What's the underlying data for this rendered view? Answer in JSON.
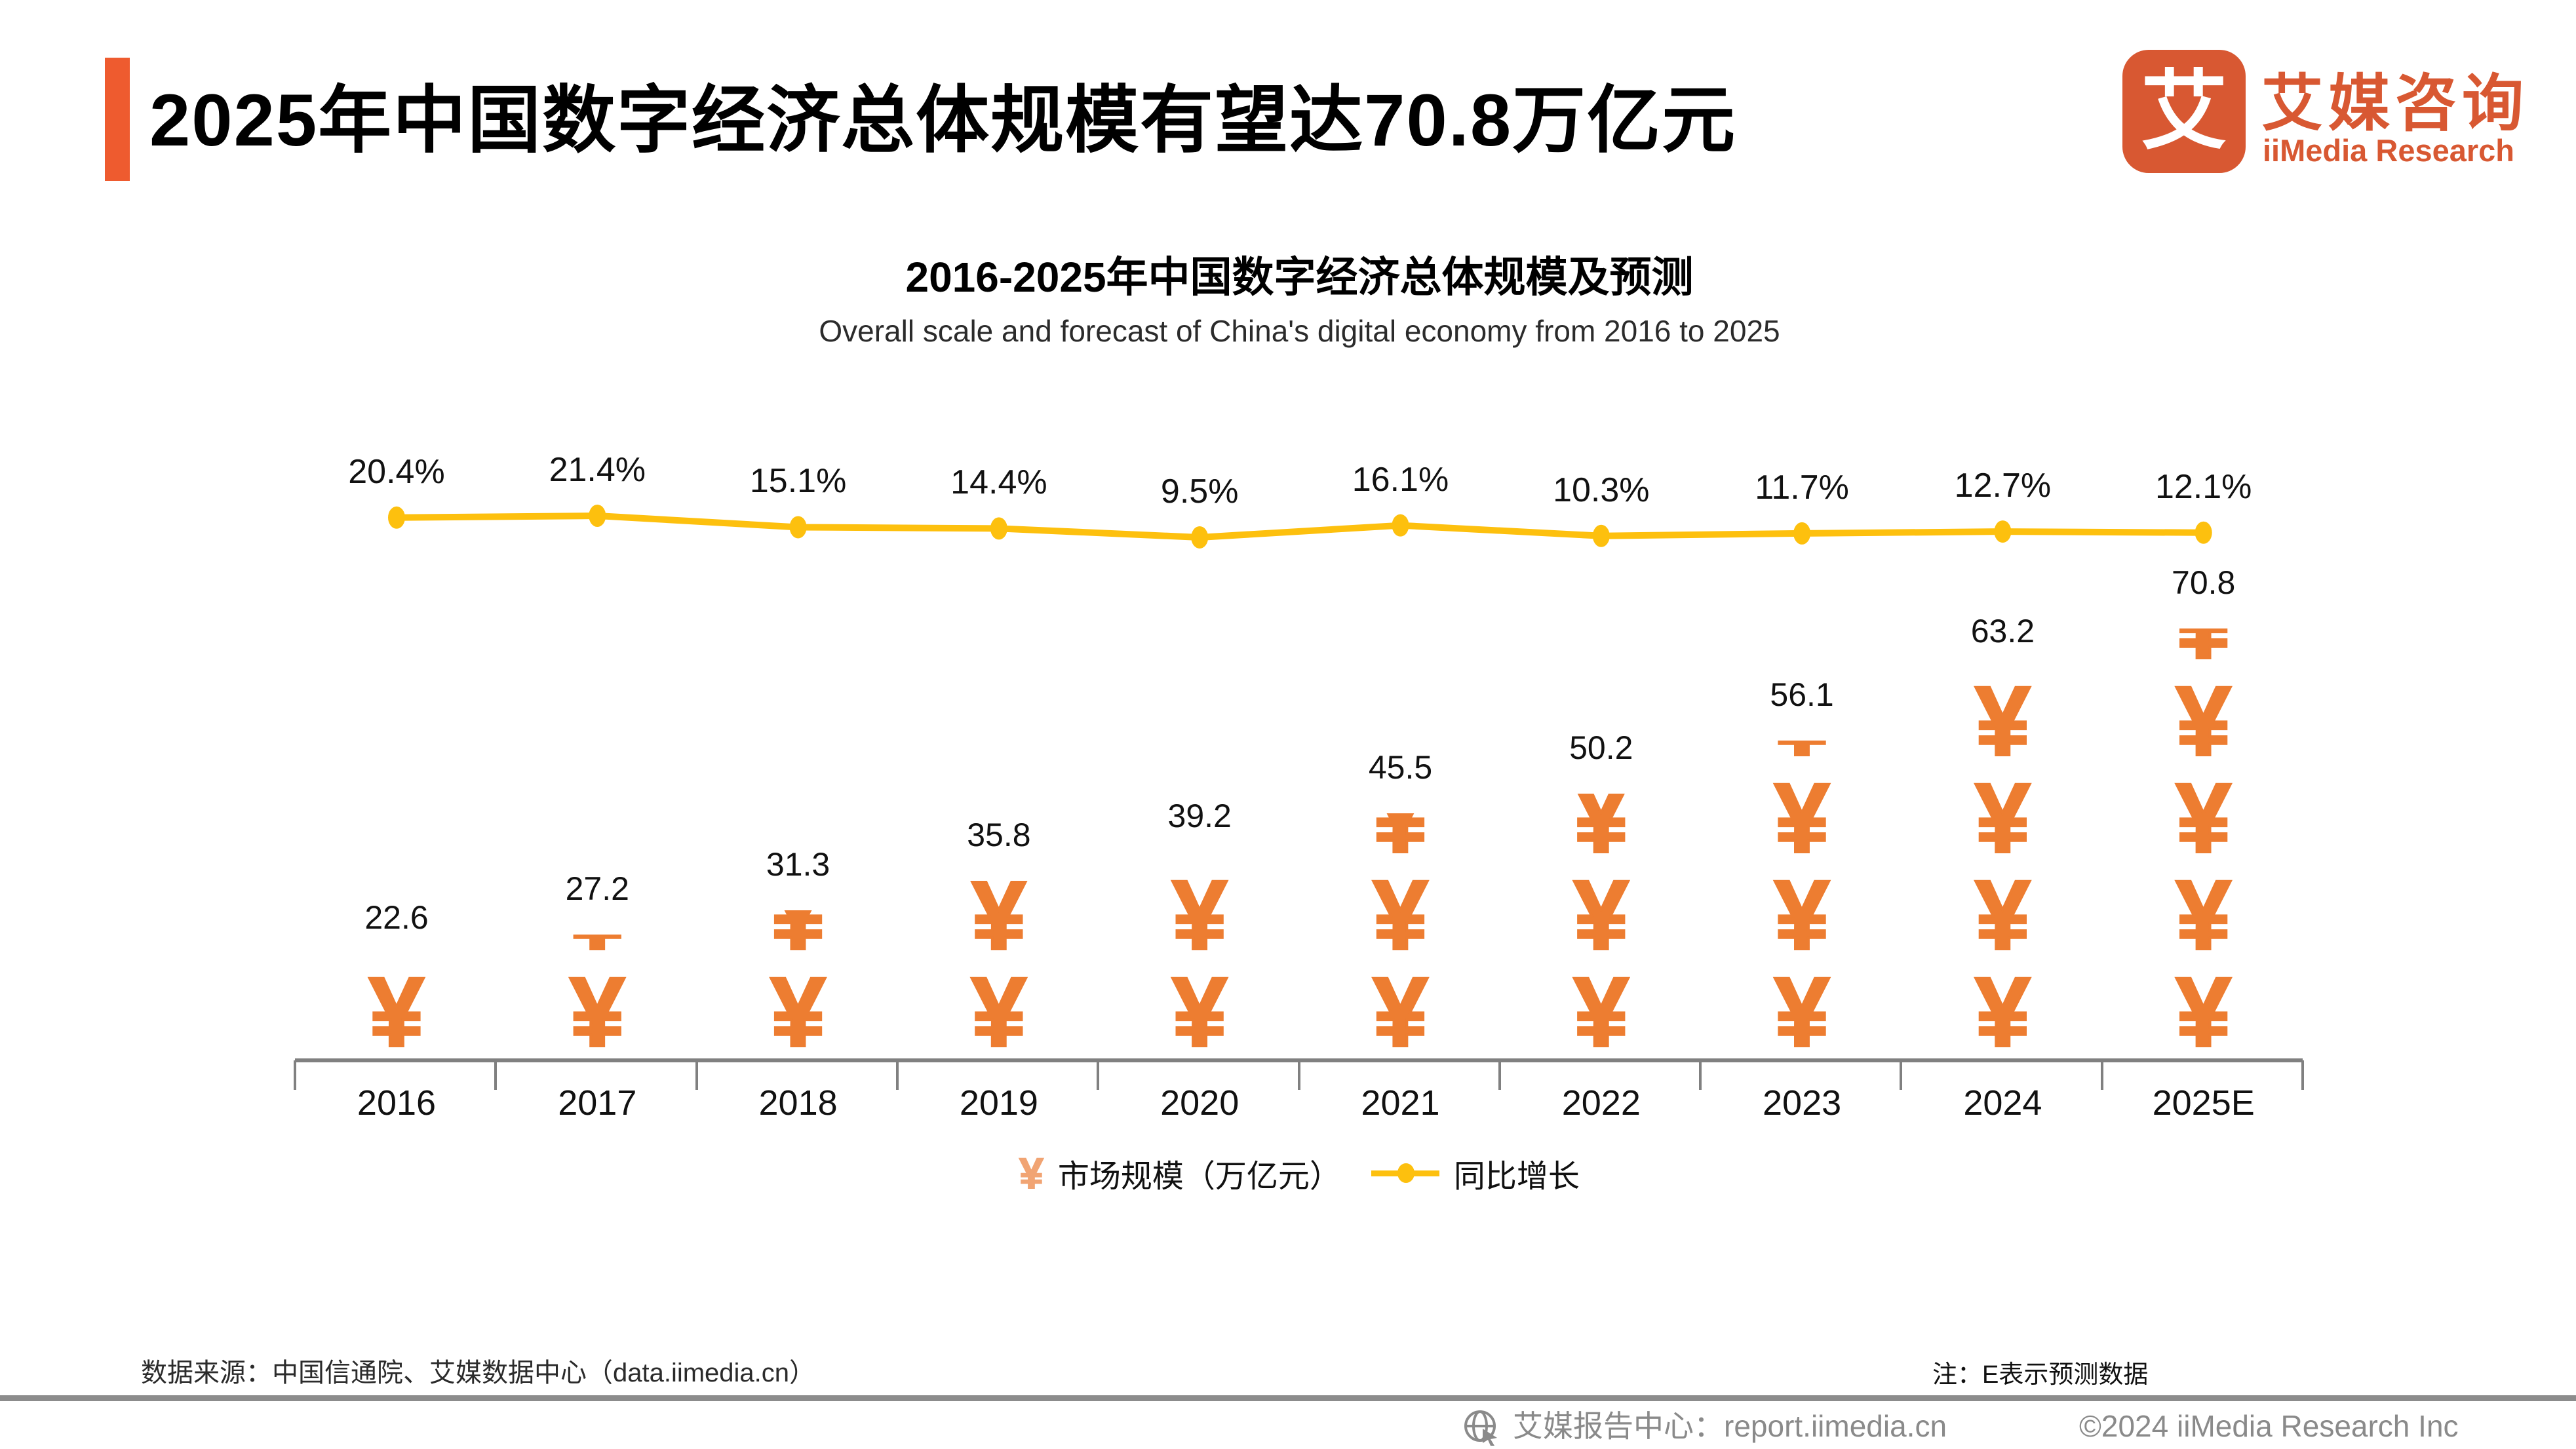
{
  "header": {
    "title": "2025年中国数字经济总体规模有望达70.8万亿元",
    "accent_color": "#EE5B2F",
    "logo": {
      "glyph": "艾",
      "name_cn": "艾媒咨询",
      "name_en": "iiMedia Research",
      "color": "#D85832"
    }
  },
  "chart": {
    "title": "2016-2025年中国数字经济总体规模及预测",
    "subtitle": "Overall scale and forecast of China's digital economy from 2016 to 2025",
    "legend": [
      {
        "icon": "yuan-icon",
        "label": "市场规模（万亿元）"
      },
      {
        "icon": "line-marker-icon",
        "label": "同比增长"
      }
    ]
  },
  "chart_data": {
    "type": "combo: pictogram bar + line",
    "categories": [
      "2016",
      "2017",
      "2018",
      "2019",
      "2020",
      "2021",
      "2022",
      "2023",
      "2024",
      "2025E"
    ],
    "series": [
      {
        "name": "市场规模（万亿元）",
        "type": "bar",
        "unit": "万亿元",
        "color": "#ED7D31",
        "values": [
          22.6,
          27.2,
          31.3,
          35.8,
          39.2,
          45.5,
          50.2,
          56.1,
          63.2,
          70.8
        ]
      },
      {
        "name": "同比增长",
        "type": "line",
        "unit": "%",
        "color": "#FDC00E",
        "values": [
          20.4,
          21.4,
          15.1,
          14.4,
          9.5,
          16.1,
          10.3,
          11.7,
          12.7,
          12.1
        ]
      }
    ],
    "title": "2016-2025年中国数字经济总体规模及预测",
    "subtitle": "Overall scale and forecast of China's digital economy from 2016 to 2025",
    "xlabel": "",
    "ylabel": "",
    "grid": false,
    "legend_position": "bottom",
    "layout": {
      "icon_glyph": "¥",
      "icon_counts": [
        1.0,
        1.3,
        1.55,
        1.85,
        2.05,
        2.55,
        2.75,
        3.3,
        3.95,
        4.45
      ],
      "bar_color": "#ED7D31",
      "line_color": "#FDC00E",
      "axis_color": "#808080",
      "legend_yuan_color": "#F1A473"
    }
  },
  "footnotes": {
    "source": "数据来源：中国信通院、艾媒数据中心（data.iimedia.cn）",
    "note": "注：E表示预测数据"
  },
  "footer": {
    "report_center": "艾媒报告中心：report.iimedia.cn",
    "copyright": "©2024  iiMedia Research  Inc"
  }
}
